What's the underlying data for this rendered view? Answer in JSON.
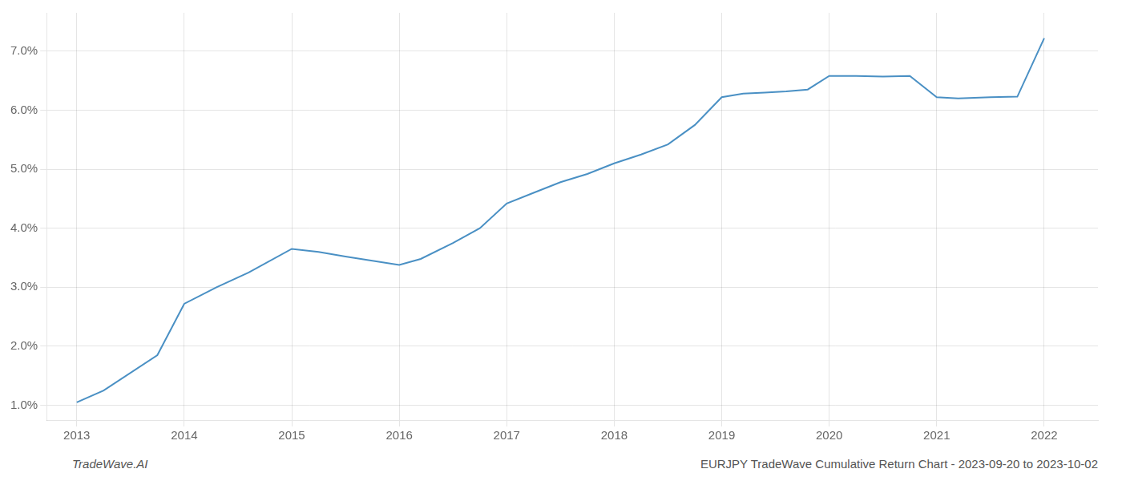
{
  "chart_data": {
    "type": "line",
    "x": [
      2013.0,
      2013.25,
      2013.75,
      2014.0,
      2014.3,
      2014.6,
      2015.0,
      2015.25,
      2015.5,
      2015.75,
      2016.0,
      2016.2,
      2016.5,
      2016.75,
      2017.0,
      2017.25,
      2017.5,
      2017.75,
      2018.0,
      2018.25,
      2018.5,
      2018.75,
      2019.0,
      2019.2,
      2019.4,
      2019.6,
      2019.8,
      2020.0,
      2020.25,
      2020.5,
      2020.75,
      2021.0,
      2021.2,
      2021.5,
      2021.75,
      2022.0
    ],
    "values": [
      1.05,
      1.25,
      1.85,
      2.72,
      3.0,
      3.25,
      3.65,
      3.6,
      3.52,
      3.45,
      3.38,
      3.48,
      3.75,
      4.0,
      4.42,
      4.6,
      4.78,
      4.92,
      5.1,
      5.25,
      5.42,
      5.75,
      6.22,
      6.28,
      6.3,
      6.32,
      6.35,
      6.58,
      6.58,
      6.57,
      6.58,
      6.22,
      6.2,
      6.22,
      6.23,
      7.22
    ],
    "color": "#4a90c4",
    "xlim": [
      2012.72,
      2022.5
    ],
    "xticks": [
      2013,
      2014,
      2015,
      2016,
      2017,
      2018,
      2019,
      2020,
      2021,
      2022
    ],
    "ylim": [
      0.75,
      7.65
    ],
    "yticks": [
      {
        "value": 1.0,
        "label": "1.0%"
      },
      {
        "value": 2.0,
        "label": "2.0%"
      },
      {
        "value": 3.0,
        "label": "3.0%"
      },
      {
        "value": 4.0,
        "label": "4.0%"
      },
      {
        "value": 5.0,
        "label": "5.0%"
      },
      {
        "value": 6.0,
        "label": "6.0%"
      },
      {
        "value": 7.0,
        "label": "7.0%"
      }
    ],
    "grid": true,
    "annotations": [
      "TradeWave.AI",
      "EURJPY TradeWave Cumulative Return Chart - 2023-09-20 to 2023-10-02"
    ]
  }
}
